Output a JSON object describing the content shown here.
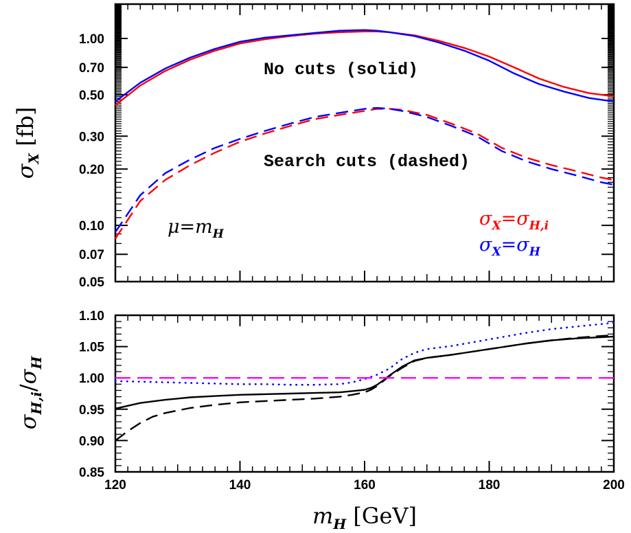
{
  "chart_data": [
    {
      "type": "line",
      "panel": "top",
      "ylabel": "σ_X [fb]",
      "yscale": "log",
      "ylim": [
        0.05,
        1.6
      ],
      "xlim": [
        120,
        200
      ],
      "yticks": [
        {
          "value": 0.05,
          "label": "0.05"
        },
        {
          "value": 0.07,
          "label": "0.07"
        },
        {
          "value": 0.1,
          "label": "0.10"
        },
        {
          "value": 0.2,
          "label": "0.20"
        },
        {
          "value": 0.3,
          "label": "0.30"
        },
        {
          "value": 0.5,
          "label": "0.50"
        },
        {
          "value": 0.7,
          "label": "0.70"
        },
        {
          "value": 1.0,
          "label": "1.00"
        }
      ],
      "annotations": {
        "no_cuts": "No cuts (solid)",
        "search_cuts": "Search cuts (dashed)",
        "scale_mu": "μ=m",
        "scale_sub": "H"
      },
      "legend": [
        {
          "lhs": "σ",
          "lhs_sub": "X",
          "eq": "=σ",
          "rhs_sub": "H,i",
          "color": "#ff0000"
        },
        {
          "lhs": "σ",
          "lhs_sub": "X",
          "eq": "=σ",
          "rhs_sub": "H",
          "color": "#0000ff"
        }
      ],
      "series": [
        {
          "style": "solid",
          "color": "#ff0000",
          "x": [
            120,
            124,
            128,
            132,
            136,
            140,
            144,
            148,
            152,
            156,
            160,
            162,
            164,
            168,
            172,
            176,
            180,
            184,
            188,
            192,
            196,
            200
          ],
          "y": [
            0.44,
            0.56,
            0.67,
            0.77,
            0.86,
            0.94,
            0.99,
            1.03,
            1.06,
            1.08,
            1.09,
            1.09,
            1.08,
            1.04,
            0.97,
            0.89,
            0.8,
            0.7,
            0.61,
            0.55,
            0.51,
            0.49
          ]
        },
        {
          "style": "solid",
          "color": "#0000ff",
          "x": [
            120,
            124,
            128,
            132,
            136,
            140,
            144,
            148,
            152,
            156,
            160,
            162,
            164,
            168,
            172,
            176,
            180,
            184,
            188,
            192,
            196,
            200
          ],
          "y": [
            0.46,
            0.58,
            0.69,
            0.79,
            0.88,
            0.96,
            1.01,
            1.04,
            1.07,
            1.1,
            1.11,
            1.1,
            1.08,
            1.03,
            0.95,
            0.86,
            0.76,
            0.65,
            0.57,
            0.52,
            0.48,
            0.46
          ]
        },
        {
          "style": "dashed",
          "color": "#ff0000",
          "x": [
            120,
            124,
            128,
            132,
            136,
            140,
            144,
            148,
            152,
            156,
            160,
            162,
            164,
            166,
            170,
            174,
            178,
            182,
            186,
            190,
            194,
            198,
            200
          ],
          "y": [
            0.085,
            0.135,
            0.175,
            0.21,
            0.245,
            0.28,
            0.31,
            0.34,
            0.37,
            0.39,
            0.41,
            0.42,
            0.42,
            0.415,
            0.39,
            0.35,
            0.31,
            0.26,
            0.23,
            0.21,
            0.195,
            0.18,
            0.175
          ]
        },
        {
          "style": "dashed",
          "color": "#0000ff",
          "x": [
            120,
            124,
            128,
            132,
            136,
            140,
            144,
            148,
            152,
            156,
            160,
            162,
            164,
            166,
            170,
            174,
            178,
            182,
            186,
            190,
            194,
            198,
            200
          ],
          "y": [
            0.092,
            0.145,
            0.19,
            0.225,
            0.26,
            0.29,
            0.32,
            0.35,
            0.38,
            0.4,
            0.42,
            0.425,
            0.42,
            0.41,
            0.38,
            0.34,
            0.3,
            0.25,
            0.22,
            0.2,
            0.185,
            0.17,
            0.165
          ]
        }
      ]
    },
    {
      "type": "line",
      "panel": "bottom",
      "ylabel": "σ_H,i/σ_H",
      "xlabel": "m_H [GeV]",
      "xlim": [
        120,
        200
      ],
      "ylim": [
        0.85,
        1.1
      ],
      "xticks": [
        120,
        140,
        160,
        180,
        200
      ],
      "yticks": [
        {
          "value": 0.85,
          "label": "0.85"
        },
        {
          "value": 0.9,
          "label": "0.90"
        },
        {
          "value": 0.95,
          "label": "0.95"
        },
        {
          "value": 1.0,
          "label": "1.00"
        },
        {
          "value": 1.05,
          "label": "1.05"
        },
        {
          "value": 1.1,
          "label": "1.10"
        }
      ],
      "series": [
        {
          "style": "solid",
          "color": "#000000",
          "x": [
            120,
            124,
            128,
            132,
            136,
            140,
            144,
            148,
            152,
            156,
            158,
            160,
            161,
            162,
            163,
            164,
            166,
            168,
            170,
            174,
            178,
            182,
            186,
            190,
            194,
            198,
            200
          ],
          "y": [
            0.951,
            0.96,
            0.965,
            0.969,
            0.971,
            0.973,
            0.974,
            0.975,
            0.976,
            0.977,
            0.979,
            0.981,
            0.984,
            0.989,
            0.996,
            1.004,
            1.018,
            1.028,
            1.032,
            1.037,
            1.043,
            1.049,
            1.055,
            1.06,
            1.063,
            1.065,
            1.066
          ]
        },
        {
          "style": "dashed",
          "color": "#000000",
          "x": [
            120,
            122,
            124,
            126,
            128,
            132,
            136,
            140,
            144,
            148,
            152,
            156,
            158,
            160,
            161,
            162,
            163,
            164,
            166,
            168,
            170,
            174,
            178,
            182,
            186,
            190,
            194,
            198,
            200
          ],
          "y": [
            0.9,
            0.915,
            0.928,
            0.938,
            0.944,
            0.952,
            0.957,
            0.961,
            0.963,
            0.965,
            0.967,
            0.97,
            0.973,
            0.977,
            0.981,
            0.987,
            0.995,
            1.003,
            1.016,
            1.027,
            1.032,
            1.037,
            1.043,
            1.049,
            1.055,
            1.06,
            1.064,
            1.067,
            1.068
          ]
        },
        {
          "style": "dotted",
          "color": "#0000ff",
          "x": [
            120,
            124,
            128,
            132,
            136,
            140,
            144,
            148,
            152,
            156,
            158,
            160,
            162,
            164,
            166,
            168,
            170,
            174,
            178,
            182,
            186,
            190,
            194,
            198,
            200
          ],
          "y": [
            0.995,
            0.994,
            0.993,
            0.992,
            0.991,
            0.99,
            0.99,
            0.989,
            0.989,
            0.99,
            0.993,
            0.998,
            1.005,
            1.015,
            1.03,
            1.04,
            1.046,
            1.051,
            1.058,
            1.065,
            1.072,
            1.078,
            1.082,
            1.086,
            1.088
          ]
        },
        {
          "style": "dashed",
          "color": "#ff00ff",
          "x": [
            120,
            200
          ],
          "y": [
            1.0,
            1.0
          ]
        }
      ]
    }
  ]
}
